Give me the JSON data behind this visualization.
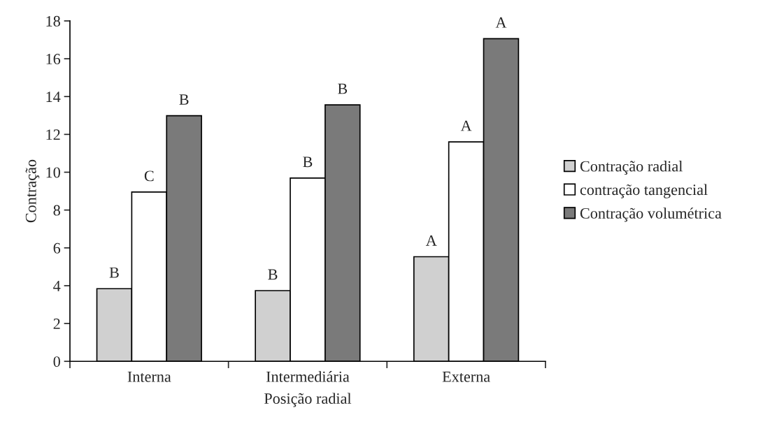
{
  "chart_data": {
    "type": "bar",
    "xlabel": "Posição radial",
    "ylabel": "Contração",
    "categories": [
      "Interna",
      "Intermediária",
      "Externa"
    ],
    "series": [
      {
        "name": "Contração radial",
        "color": "#d0d0d0",
        "values": [
          3.84,
          3.74,
          5.53
        ],
        "value_labels": [
          "B",
          "B",
          "A"
        ]
      },
      {
        "name": "contração tangencial",
        "color": "#ffffff",
        "values": [
          8.95,
          9.69,
          11.6
        ],
        "value_labels": [
          "C",
          "B",
          "A"
        ]
      },
      {
        "name": "Contração volumétrica",
        "color": "#7a7a7a",
        "values": [
          12.99,
          13.56,
          17.06
        ],
        "value_labels": [
          "B",
          "B",
          "A"
        ]
      }
    ],
    "ylim": [
      0,
      18
    ],
    "yticks": [
      0,
      2,
      4,
      6,
      8,
      10,
      12,
      14,
      16,
      18
    ],
    "grid": false,
    "legend": "right"
  }
}
